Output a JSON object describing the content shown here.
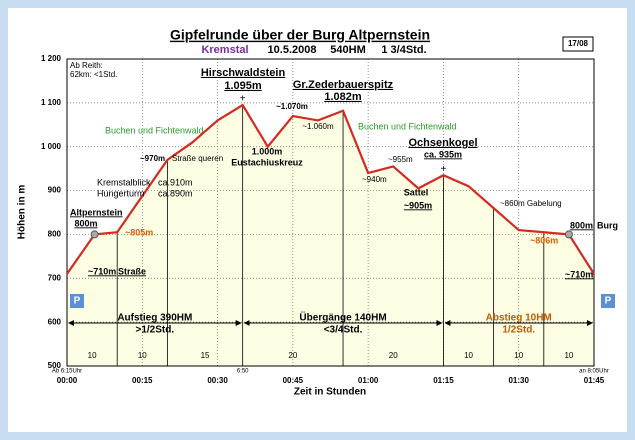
{
  "chart_data": {
    "type": "line",
    "title": "Gipfelrunde über der Burg Altpernstein",
    "subtitle": [
      "Kremstal",
      "10.5.2008",
      "540HM",
      "1 3/4Std."
    ],
    "badge": "17/08",
    "note": [
      "Ab Reith:",
      "62km: <1Std."
    ],
    "y_label": "Höhen in m",
    "x_label": "Zeit in Stunden",
    "x": [
      0,
      5.5,
      10,
      20,
      25,
      30,
      35,
      40,
      45,
      50,
      55,
      60,
      65,
      70,
      75,
      80,
      85,
      90,
      95,
      100,
      105
    ],
    "values": [
      710,
      800,
      805,
      970,
      1010,
      1060,
      1095,
      1000,
      1070,
      1060,
      1082,
      940,
      955,
      905,
      935,
      910,
      860,
      810,
      805,
      800,
      710
    ],
    "color": "#d42a20",
    "fill": "#fdfde4",
    "xlim": [
      0,
      105
    ],
    "xticks": [
      {
        "value": 0,
        "label": "00:00"
      },
      {
        "value": 15,
        "label": "00:15"
      },
      {
        "value": 30,
        "label": "00:30"
      },
      {
        "value": 45,
        "label": "00:45"
      },
      {
        "value": 60,
        "label": "01:00"
      },
      {
        "value": 75,
        "label": "01:15"
      },
      {
        "value": 90,
        "label": "01:30"
      },
      {
        "value": 105,
        "label": "01:45"
      }
    ],
    "ylim": [
      500,
      1200
    ],
    "yticks": [
      500,
      600,
      700,
      800,
      900,
      {
        "value": 1000,
        "label": "1 000"
      },
      {
        "value": 1100,
        "label": "1 100"
      },
      {
        "value": 1200,
        "label": "1 200"
      }
    ],
    "grid": true,
    "segments": [
      10,
      10,
      15,
      20,
      20,
      10,
      10,
      10
    ],
    "phases": [
      {
        "lines": [
          "Aufstieg 390HM",
          ">1/2Std."
        ],
        "color": "#000000"
      },
      {
        "lines": [
          "Übergänge 140HM",
          "<3/4Std."
        ],
        "color": "#000000"
      },
      {
        "lines": [
          "Abstieg 10HM",
          "1/2Std."
        ],
        "color": "#c05a00"
      }
    ],
    "times": [
      "Ab 6:15Uhr",
      "6:50",
      "an 8:05Uhr"
    ],
    "annotations": [
      "Hirschwaldstein",
      "1.095m",
      "Gr.Zederbauerspitz",
      "1.082m",
      "~1.070m",
      "~1.060m",
      "Buchen und Fichtenwald",
      "Buchen und Fichtenwald",
      "~970m",
      "Straße queren",
      "1.000m",
      "Eustachiuskreuz",
      "~955m",
      "~940m",
      "Ochsenkogel",
      "ca. 935m",
      "Kremstalblick",
      "ca.910m",
      "Hungerturm",
      "ca.890m",
      "Sattel",
      "~905m",
      "~860m Gabelung",
      "Altpernstein",
      "800m",
      "~805m",
      "800m",
      "Burg",
      "~806m",
      "~710m",
      "Straße",
      "~710m",
      "P",
      "P"
    ]
  }
}
